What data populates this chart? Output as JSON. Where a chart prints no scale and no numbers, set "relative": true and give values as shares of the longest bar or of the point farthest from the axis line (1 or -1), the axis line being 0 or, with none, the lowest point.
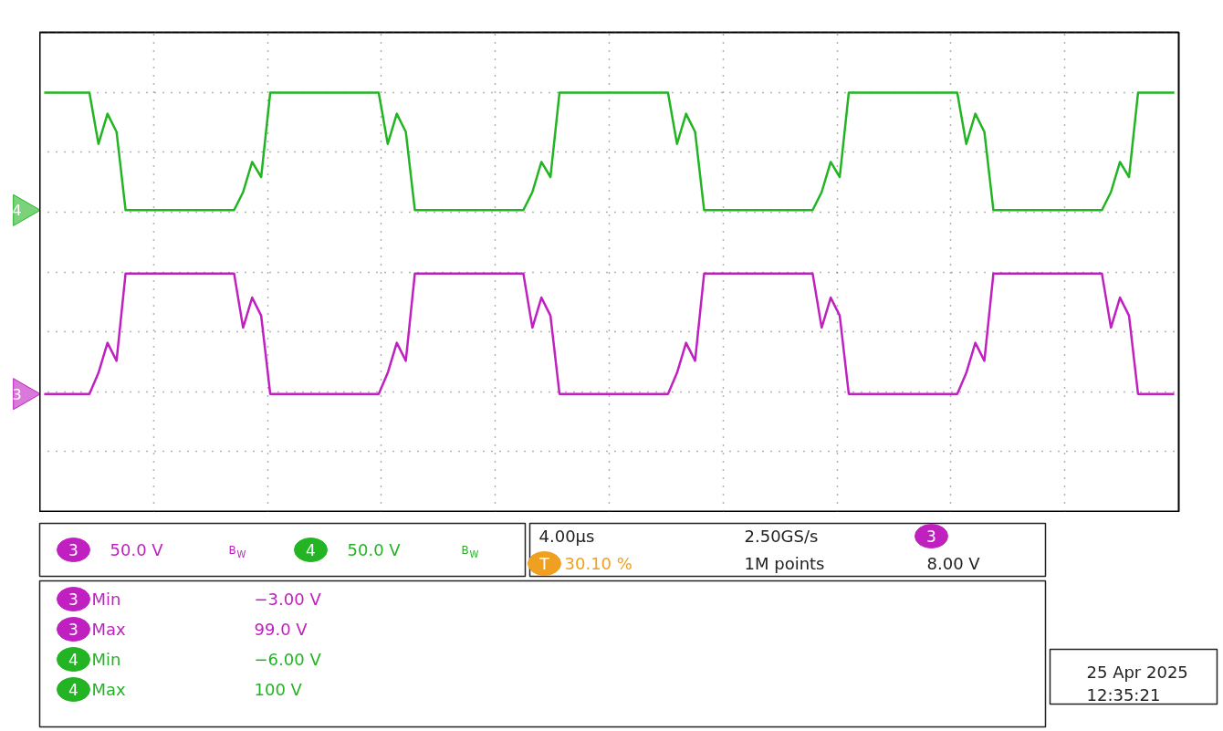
{
  "chart_data": {
    "type": "line",
    "relative": true,
    "grid": true,
    "legend": "bottom left",
    "marker": "none",
    "line_style": "solid",
    "categories": [
      null,
      null,
      null,
      null,
      null,
      null,
      null,
      null,
      null,
      null,
      null,
      null,
      null,
      null,
      null,
      null,
      null,
      null,
      null,
      null,
      null,
      null,
      null,
      null,
      null,
      null,
      null,
      null,
      null,
      null,
      null,
      null,
      null,
      null,
      null,
      null,
      null,
      null,
      null,
      null,
      null,
      null,
      null,
      null,
      null,
      null,
      null,
      null,
      null,
      null,
      null,
      null,
      null,
      null,
      null,
      null,
      null,
      null,
      null,
      null,
      null,
      null,
      null,
      null,
      null,
      null,
      null,
      null,
      null,
      null,
      null,
      null,
      null,
      null,
      null,
      null,
      null,
      null,
      null,
      null,
      null,
      null,
      null,
      null,
      null,
      null,
      null,
      null,
      null,
      null,
      null,
      null,
      null,
      null,
      null,
      null,
      null,
      null,
      null,
      null,
      null,
      null,
      null,
      null,
      null,
      null,
      null,
      null,
      null,
      null,
      null,
      null,
      null,
      null,
      null,
      null,
      null,
      null,
      null,
      null,
      null,
      null,
      null,
      null,
      null,
      null
    ],
    "series": [
      {
        "name": "4",
        "color": "#22b422",
        "values": [
          1,
          1,
          1,
          1,
          1,
          1,
          0.83,
          0.93,
          0.87,
          0.61,
          0.61,
          0.61,
          0.61,
          0.61,
          0.61,
          0.61,
          0.61,
          0.61,
          0.61,
          0.61,
          0.61,
          0.61,
          0.67,
          0.77,
          0.72,
          1,
          1,
          1,
          1,
          1,
          1,
          1,
          1,
          1,
          1,
          1,
          1,
          1,
          0.83,
          0.93,
          0.87,
          0.61,
          0.61,
          0.61,
          0.61,
          0.61,
          0.61,
          0.61,
          0.61,
          0.61,
          0.61,
          0.61,
          0.61,
          0.61,
          0.67,
          0.77,
          0.72,
          1,
          1,
          1,
          1,
          1,
          1,
          1,
          1,
          1,
          1,
          1,
          1,
          1,
          0.83,
          0.93,
          0.87,
          0.61,
          0.61,
          0.61,
          0.61,
          0.61,
          0.61,
          0.61,
          0.61,
          0.61,
          0.61,
          0.61,
          0.61,
          0.61,
          0.67,
          0.77,
          0.72,
          1,
          1,
          1,
          1,
          1,
          1,
          1,
          1,
          1,
          1,
          1,
          1,
          1,
          0.83,
          0.93,
          0.87,
          0.61,
          0.61,
          0.61,
          0.61,
          0.61,
          0.61,
          0.61,
          0.61,
          0.61,
          0.61,
          0.61,
          0.61,
          0.61,
          0.67,
          0.77,
          0.72,
          1,
          1,
          1,
          1,
          1
        ]
      },
      {
        "name": "3",
        "color": "#c020c0",
        "values": [
          0,
          0,
          0,
          0,
          0,
          0,
          0.07,
          0.17,
          0.11,
          0.4,
          0.4,
          0.4,
          0.4,
          0.4,
          0.4,
          0.4,
          0.4,
          0.4,
          0.4,
          0.4,
          0.4,
          0.4,
          0.22,
          0.32,
          0.26,
          0,
          0,
          0,
          0,
          0,
          0,
          0,
          0,
          0,
          0,
          0,
          0,
          0,
          0.07,
          0.17,
          0.11,
          0.4,
          0.4,
          0.4,
          0.4,
          0.4,
          0.4,
          0.4,
          0.4,
          0.4,
          0.4,
          0.4,
          0.4,
          0.4,
          0.22,
          0.32,
          0.26,
          0,
          0,
          0,
          0,
          0,
          0,
          0,
          0,
          0,
          0,
          0,
          0,
          0,
          0.07,
          0.17,
          0.11,
          0.4,
          0.4,
          0.4,
          0.4,
          0.4,
          0.4,
          0.4,
          0.4,
          0.4,
          0.4,
          0.4,
          0.4,
          0.4,
          0.22,
          0.32,
          0.26,
          0,
          0,
          0,
          0,
          0,
          0,
          0,
          0,
          0,
          0,
          0,
          0,
          0,
          0.07,
          0.17,
          0.11,
          0.4,
          0.4,
          0.4,
          0.4,
          0.4,
          0.4,
          0.4,
          0.4,
          0.4,
          0.4,
          0.4,
          0.4,
          0.4,
          0.22,
          0.32,
          0.26,
          0,
          0,
          0,
          0,
          0
        ]
      }
    ],
    "annotations": [
      "3",
      "50.0 V",
      "B$_{W}$",
      "4",
      "50.0 V",
      "B$_{W}$",
      "4.00µs",
      "2.50GS/s",
      "3",
      "8.00 V",
      "T",
      "30.10 %",
      "1M points",
      "3",
      "Min",
      "−3.00 V",
      "3",
      "Max",
      "99.0 V",
      "4",
      "Min",
      "−6.00 V",
      "4",
      "Max",
      "100 V",
      "25 Apr  2025",
      "12:35:21"
    ]
  }
}
